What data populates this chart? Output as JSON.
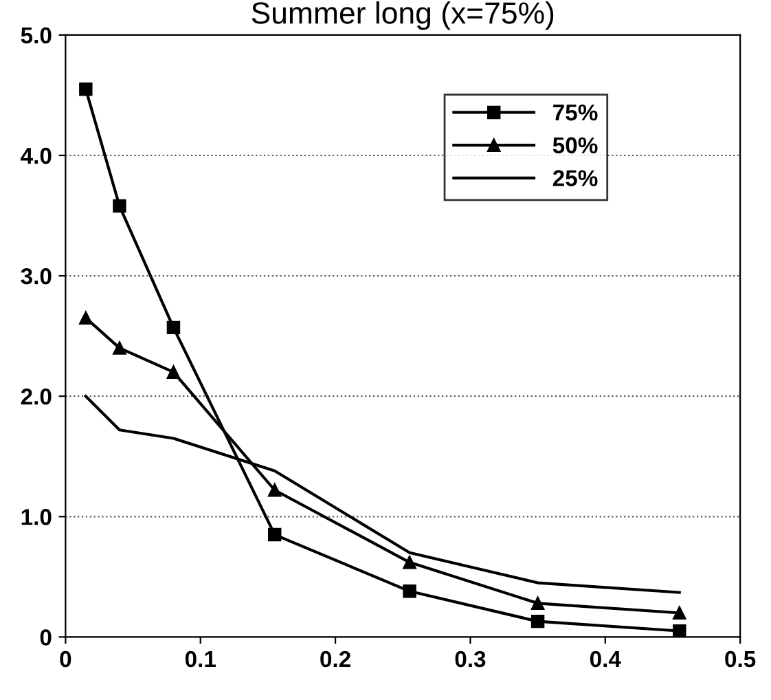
{
  "chart_data": {
    "type": "line",
    "title": "Summer long (x=75%)",
    "x": [
      0.015,
      0.04,
      0.08,
      0.155,
      0.255,
      0.35,
      0.455
    ],
    "series": [
      {
        "name": "75%",
        "color": "#000000",
        "marker": "square",
        "values": [
          4.55,
          3.58,
          2.57,
          0.85,
          0.38,
          0.13,
          0.05
        ]
      },
      {
        "name": "50%",
        "color": "#000000",
        "marker": "triangle",
        "values": [
          2.65,
          2.4,
          2.2,
          1.22,
          0.62,
          0.28,
          0.2
        ]
      },
      {
        "name": "25%",
        "color": "#000000",
        "marker": "none",
        "values": [
          2.0,
          1.72,
          1.65,
          1.38,
          0.7,
          0.45,
          0.37
        ]
      }
    ],
    "xlim": [
      0,
      0.5
    ],
    "xticks": [
      0,
      0.1,
      0.2,
      0.3,
      0.4,
      0.5
    ],
    "ylim": [
      0,
      5
    ],
    "yticks": [
      {
        "value": 0,
        "label": "0"
      },
      {
        "value": 1,
        "label": "1.0"
      },
      {
        "value": 2,
        "label": "2.0"
      },
      {
        "value": 3,
        "label": "3.0"
      },
      {
        "value": 4,
        "label": "4.0"
      },
      {
        "value": 5,
        "label": "5.0"
      }
    ],
    "grid": "y",
    "legend": "top right",
    "line_style": "solid"
  }
}
